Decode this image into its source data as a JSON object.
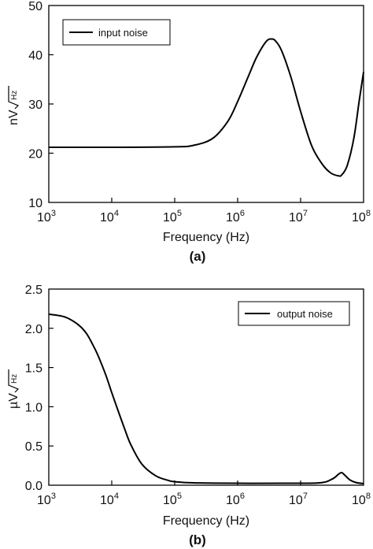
{
  "chart_data": [
    {
      "type": "line",
      "panel_label": "(a)",
      "xlabel": "Frequency (Hz)",
      "ylabel_main": "nV",
      "ylabel_unit": "Hz",
      "x_scale": "log",
      "xlim": [
        1000,
        100000000
      ],
      "ylim": [
        10,
        50
      ],
      "x_ticks": [
        {
          "base": "10",
          "exp": "3",
          "value": 1000
        },
        {
          "base": "10",
          "exp": "4",
          "value": 10000
        },
        {
          "base": "10",
          "exp": "5",
          "value": 100000
        },
        {
          "base": "10",
          "exp": "6",
          "value": 1000000
        },
        {
          "base": "10",
          "exp": "7",
          "value": 10000000
        },
        {
          "base": "10",
          "exp": "8",
          "value": 100000000
        }
      ],
      "y_ticks": [
        "10",
        "20",
        "30",
        "40",
        "50"
      ],
      "legend_position": "top-left",
      "series": [
        {
          "name": "input noise",
          "color": "#000000",
          "points": [
            [
              1000,
              21.2
            ],
            [
              10000,
              21.2
            ],
            [
              100000,
              21.3
            ],
            [
              200000,
              21.6
            ],
            [
              400000,
              23.0
            ],
            [
              700000,
              26.5
            ],
            [
              1000000,
              30.5
            ],
            [
              1500000,
              35.8
            ],
            [
              2000000,
              39.5
            ],
            [
              2800000,
              42.6
            ],
            [
              3400000,
              43.2
            ],
            [
              4000000,
              42.8
            ],
            [
              5000000,
              40.8
            ],
            [
              7000000,
              35.5
            ],
            [
              10000000,
              28.5
            ],
            [
              15000000,
              21.5
            ],
            [
              22000000,
              17.8
            ],
            [
              30000000,
              16.0
            ],
            [
              40000000,
              15.4
            ],
            [
              45000000,
              15.6
            ],
            [
              55000000,
              17.5
            ],
            [
              70000000,
              23.0
            ],
            [
              85000000,
              30.5
            ],
            [
              100000000,
              36.5
            ]
          ]
        }
      ]
    },
    {
      "type": "line",
      "panel_label": "(b)",
      "xlabel": "Frequency (Hz)",
      "ylabel_main": "µV",
      "ylabel_unit": "Hz",
      "x_scale": "log",
      "xlim": [
        1000,
        100000000
      ],
      "ylim": [
        0,
        2.5
      ],
      "x_ticks": [
        {
          "base": "10",
          "exp": "3",
          "value": 1000
        },
        {
          "base": "10",
          "exp": "4",
          "value": 10000
        },
        {
          "base": "10",
          "exp": "5",
          "value": 100000
        },
        {
          "base": "10",
          "exp": "6",
          "value": 1000000
        },
        {
          "base": "10",
          "exp": "7",
          "value": 10000000
        },
        {
          "base": "10",
          "exp": "8",
          "value": 100000000
        }
      ],
      "y_ticks": [
        "0.0",
        "0.5",
        "1.0",
        "1.5",
        "2.0",
        "2.5"
      ],
      "legend_position": "top-right",
      "series": [
        {
          "name": "output noise",
          "color": "#000000",
          "points": [
            [
              1000,
              2.18
            ],
            [
              1500,
              2.16
            ],
            [
              2000,
              2.13
            ],
            [
              3000,
              2.04
            ],
            [
              4000,
              1.93
            ],
            [
              5000,
              1.79
            ],
            [
              6000,
              1.66
            ],
            [
              8000,
              1.41
            ],
            [
              10000,
              1.18
            ],
            [
              13000,
              0.92
            ],
            [
              16000,
              0.72
            ],
            [
              20000,
              0.52
            ],
            [
              30000,
              0.27
            ],
            [
              50000,
              0.12
            ],
            [
              80000,
              0.06
            ],
            [
              100000,
              0.045
            ],
            [
              200000,
              0.03
            ],
            [
              1000000,
              0.025
            ],
            [
              5000000,
              0.025
            ],
            [
              20000000,
              0.03
            ],
            [
              32000000,
              0.08
            ],
            [
              40000000,
              0.14
            ],
            [
              45000000,
              0.16
            ],
            [
              50000000,
              0.13
            ],
            [
              60000000,
              0.07
            ],
            [
              75000000,
              0.035
            ],
            [
              100000000,
              0.02
            ]
          ]
        }
      ]
    }
  ]
}
